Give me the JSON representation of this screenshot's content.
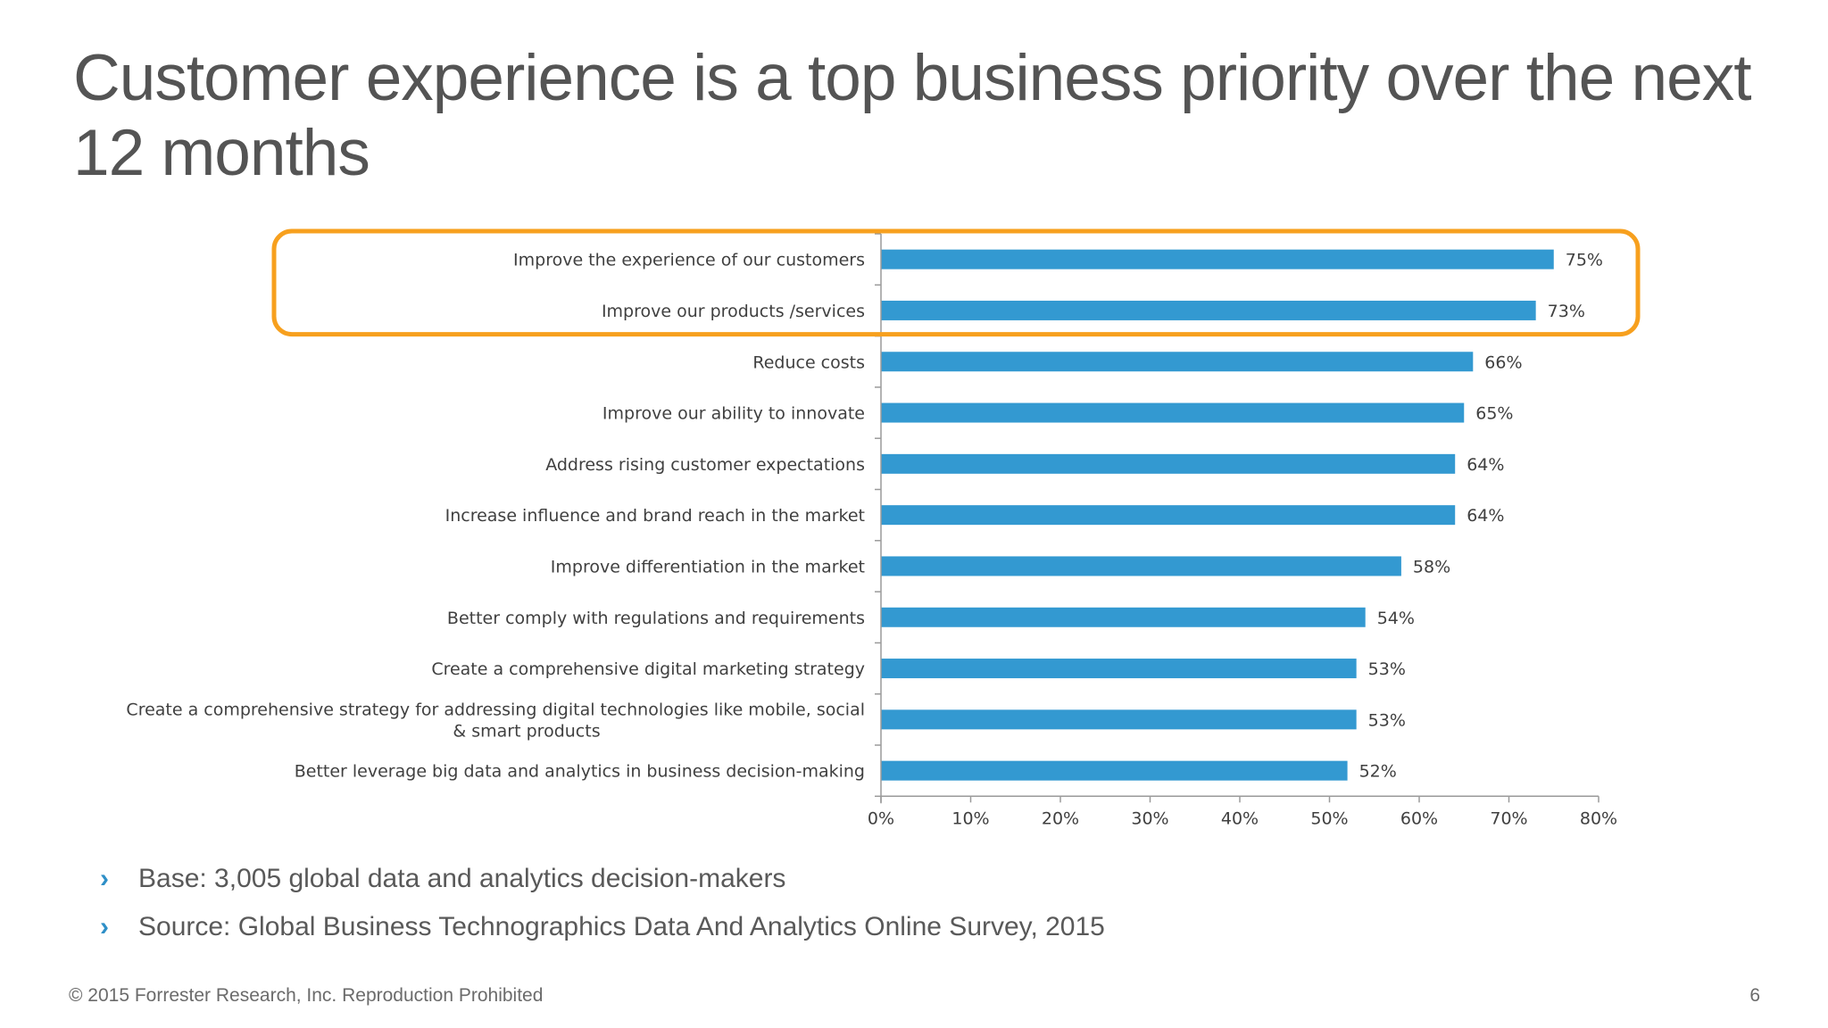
{
  "slide": {
    "title": "Customer experience is a top business priority over the next 12 months",
    "bullets": [
      "Base: 3,005 global data and analytics decision-makers",
      "Source: Global Business Technographics Data And Analytics Online Survey, 2015"
    ],
    "footer": "© 2015 Forrester Research, Inc. Reproduction Prohibited",
    "page_number": "6"
  },
  "colors": {
    "bar": "#3399d1",
    "highlight": "#f7a01e",
    "axis": "#9a9a9a",
    "text": "#404040",
    "title": "#545454"
  },
  "chart_data": {
    "type": "bar",
    "orientation": "horizontal",
    "categories": [
      "Improve the experience of our customers",
      "Improve our products /services",
      "Reduce costs",
      "Improve our ability to innovate",
      "Address rising customer expectations",
      "Increase influence and brand reach in the market",
      "Improve differentiation in the market",
      "Better comply with regulations and requirements",
      "Create a comprehensive digital marketing strategy",
      "Create a comprehensive strategy for addressing digital technologies like mobile, social & smart products",
      "Better leverage big data and analytics in business decision-making"
    ],
    "values": [
      75,
      73,
      66,
      65,
      64,
      64,
      58,
      54,
      53,
      53,
      52
    ],
    "data_labels": [
      "75%",
      "73%",
      "66%",
      "65%",
      "64%",
      "64%",
      "58%",
      "54%",
      "53%",
      "53%",
      "52%"
    ],
    "x_ticks": [
      "0%",
      "10%",
      "20%",
      "30%",
      "40%",
      "50%",
      "60%",
      "70%",
      "80%"
    ],
    "xlim": [
      0,
      80
    ],
    "grid": false,
    "highlighted_categories": [
      0,
      1
    ]
  }
}
